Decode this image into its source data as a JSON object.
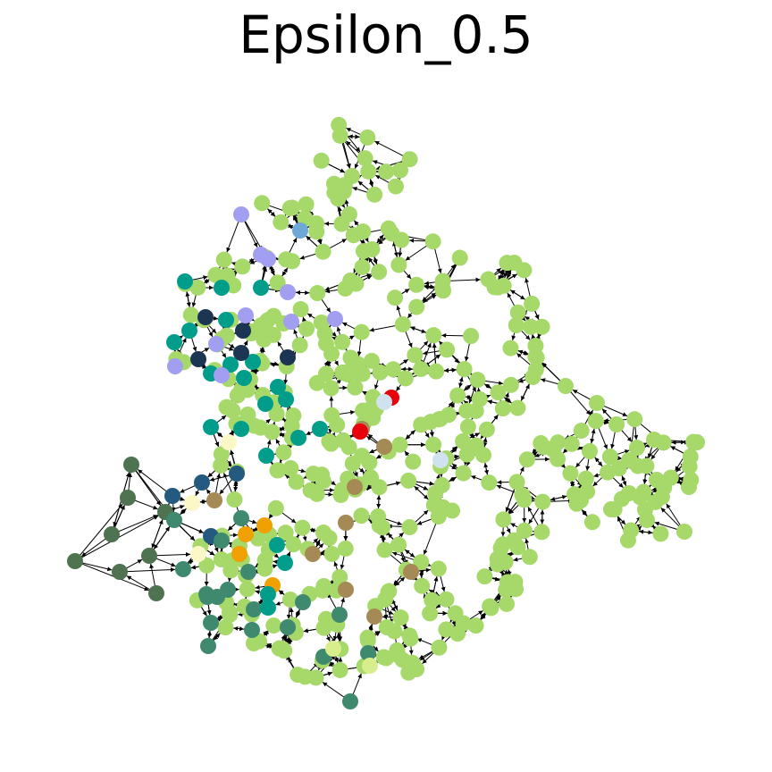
{
  "title": "Epsilon_0.5",
  "palette": {
    "light_green": "#a6d96a",
    "teal": "#009e8a",
    "dark_navy": "#1c3553",
    "lavender": "#a29ff0",
    "dark_green": "#4f7250",
    "sea_green": "#3f8a6e",
    "brown": "#a68a55",
    "orange": "#f0a000",
    "cream": "#fbf7c6",
    "red": "#e8000b",
    "light_blue": "#cfe2ee",
    "steel_blue": "#6ea8d6",
    "navy_blue": "#245a80",
    "pale_yellow_green": "#d8ee8c"
  },
  "edge_color": "#000000",
  "edge_density": 4,
  "node_radius_hint": "uniform"
}
